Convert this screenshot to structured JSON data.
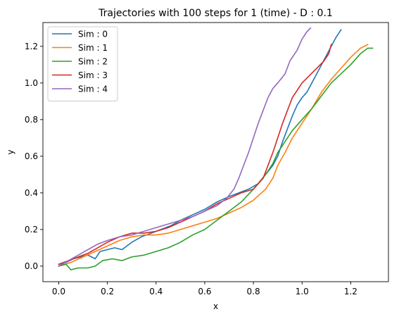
{
  "chart_data": {
    "type": "line",
    "title": "Trajectories with 100 steps for 1 (time) - D : 0.1",
    "xlabel": "x",
    "ylabel": "y",
    "xlim": [
      -0.065,
      1.355
    ],
    "ylim": [
      -0.085,
      1.33
    ],
    "xticks": [
      0.0,
      0.2,
      0.4,
      0.6,
      0.8,
      1.0,
      1.2
    ],
    "yticks": [
      0.0,
      0.2,
      0.4,
      0.6,
      0.8,
      1.0,
      1.2
    ],
    "xtick_labels": [
      "0.0",
      "0.2",
      "0.4",
      "0.6",
      "0.8",
      "1.0",
      "1.2"
    ],
    "ytick_labels": [
      "0.0",
      "0.2",
      "0.4",
      "0.6",
      "0.8",
      "1.0",
      "1.2"
    ],
    "grid": false,
    "legend_position": "top-left",
    "series": [
      {
        "name": "Sim : 0",
        "color": "#1f77b4",
        "points": [
          [
            0.0,
            0.01
          ],
          [
            0.03,
            0.02
          ],
          [
            0.06,
            0.04
          ],
          [
            0.09,
            0.05
          ],
          [
            0.12,
            0.06
          ],
          [
            0.15,
            0.04
          ],
          [
            0.17,
            0.08
          ],
          [
            0.2,
            0.09
          ],
          [
            0.23,
            0.1
          ],
          [
            0.26,
            0.09
          ],
          [
            0.3,
            0.13
          ],
          [
            0.34,
            0.16
          ],
          [
            0.38,
            0.18
          ],
          [
            0.42,
            0.2
          ],
          [
            0.46,
            0.22
          ],
          [
            0.5,
            0.25
          ],
          [
            0.55,
            0.28
          ],
          [
            0.6,
            0.31
          ],
          [
            0.65,
            0.35
          ],
          [
            0.7,
            0.38
          ],
          [
            0.74,
            0.4
          ],
          [
            0.78,
            0.42
          ],
          [
            0.82,
            0.45
          ],
          [
            0.85,
            0.5
          ],
          [
            0.88,
            0.55
          ],
          [
            0.9,
            0.6
          ],
          [
            0.92,
            0.68
          ],
          [
            0.94,
            0.75
          ],
          [
            0.96,
            0.82
          ],
          [
            0.98,
            0.88
          ],
          [
            1.0,
            0.92
          ],
          [
            1.02,
            0.95
          ],
          [
            1.04,
            1.0
          ],
          [
            1.06,
            1.05
          ],
          [
            1.08,
            1.1
          ],
          [
            1.1,
            1.15
          ],
          [
            1.12,
            1.2
          ],
          [
            1.14,
            1.25
          ],
          [
            1.16,
            1.29
          ]
        ]
      },
      {
        "name": "Sim : 1",
        "color": "#ff7f0e",
        "points": [
          [
            0.0,
            0.0
          ],
          [
            0.05,
            0.02
          ],
          [
            0.1,
            0.05
          ],
          [
            0.15,
            0.08
          ],
          [
            0.2,
            0.11
          ],
          [
            0.25,
            0.14
          ],
          [
            0.3,
            0.16
          ],
          [
            0.35,
            0.17
          ],
          [
            0.4,
            0.17
          ],
          [
            0.45,
            0.18
          ],
          [
            0.5,
            0.2
          ],
          [
            0.55,
            0.22
          ],
          [
            0.6,
            0.24
          ],
          [
            0.65,
            0.26
          ],
          [
            0.7,
            0.29
          ],
          [
            0.75,
            0.32
          ],
          [
            0.8,
            0.36
          ],
          [
            0.85,
            0.42
          ],
          [
            0.88,
            0.48
          ],
          [
            0.9,
            0.55
          ],
          [
            0.93,
            0.62
          ],
          [
            0.96,
            0.7
          ],
          [
            1.0,
            0.78
          ],
          [
            1.04,
            0.86
          ],
          [
            1.08,
            0.95
          ],
          [
            1.12,
            1.02
          ],
          [
            1.16,
            1.08
          ],
          [
            1.2,
            1.14
          ],
          [
            1.24,
            1.19
          ],
          [
            1.27,
            1.21
          ]
        ]
      },
      {
        "name": "Sim : 2",
        "color": "#2ca02c",
        "points": [
          [
            0.0,
            0.0
          ],
          [
            0.03,
            0.01
          ],
          [
            0.05,
            -0.02
          ],
          [
            0.08,
            -0.01
          ],
          [
            0.12,
            -0.01
          ],
          [
            0.15,
            0.0
          ],
          [
            0.18,
            0.03
          ],
          [
            0.22,
            0.04
          ],
          [
            0.26,
            0.03
          ],
          [
            0.3,
            0.05
          ],
          [
            0.35,
            0.06
          ],
          [
            0.4,
            0.08
          ],
          [
            0.45,
            0.1
          ],
          [
            0.5,
            0.13
          ],
          [
            0.55,
            0.17
          ],
          [
            0.6,
            0.2
          ],
          [
            0.65,
            0.25
          ],
          [
            0.7,
            0.3
          ],
          [
            0.75,
            0.35
          ],
          [
            0.8,
            0.42
          ],
          [
            0.85,
            0.5
          ],
          [
            0.88,
            0.56
          ],
          [
            0.9,
            0.62
          ],
          [
            0.93,
            0.68
          ],
          [
            0.96,
            0.74
          ],
          [
            1.0,
            0.8
          ],
          [
            1.04,
            0.86
          ],
          [
            1.08,
            0.93
          ],
          [
            1.12,
            1.0
          ],
          [
            1.16,
            1.05
          ],
          [
            1.2,
            1.1
          ],
          [
            1.24,
            1.16
          ],
          [
            1.27,
            1.19
          ],
          [
            1.29,
            1.19
          ]
        ]
      },
      {
        "name": "Sim : 3",
        "color": "#d62728",
        "points": [
          [
            0.0,
            0.01
          ],
          [
            0.04,
            0.03
          ],
          [
            0.08,
            0.05
          ],
          [
            0.12,
            0.07
          ],
          [
            0.16,
            0.1
          ],
          [
            0.2,
            0.13
          ],
          [
            0.25,
            0.16
          ],
          [
            0.3,
            0.18
          ],
          [
            0.35,
            0.18
          ],
          [
            0.4,
            0.19
          ],
          [
            0.45,
            0.21
          ],
          [
            0.5,
            0.24
          ],
          [
            0.55,
            0.27
          ],
          [
            0.6,
            0.3
          ],
          [
            0.65,
            0.34
          ],
          [
            0.7,
            0.37
          ],
          [
            0.75,
            0.4
          ],
          [
            0.8,
            0.42
          ],
          [
            0.84,
            0.48
          ],
          [
            0.86,
            0.55
          ],
          [
            0.88,
            0.62
          ],
          [
            0.9,
            0.7
          ],
          [
            0.92,
            0.78
          ],
          [
            0.94,
            0.85
          ],
          [
            0.96,
            0.92
          ],
          [
            0.98,
            0.96
          ],
          [
            1.0,
            1.0
          ],
          [
            1.03,
            1.04
          ],
          [
            1.06,
            1.08
          ],
          [
            1.09,
            1.12
          ],
          [
            1.11,
            1.16
          ],
          [
            1.12,
            1.21
          ]
        ]
      },
      {
        "name": "Sim : 4",
        "color": "#9467bd",
        "points": [
          [
            0.0,
            0.0
          ],
          [
            0.04,
            0.03
          ],
          [
            0.08,
            0.06
          ],
          [
            0.12,
            0.09
          ],
          [
            0.16,
            0.12
          ],
          [
            0.2,
            0.14
          ],
          [
            0.25,
            0.16
          ],
          [
            0.3,
            0.17
          ],
          [
            0.35,
            0.19
          ],
          [
            0.4,
            0.21
          ],
          [
            0.45,
            0.23
          ],
          [
            0.5,
            0.25
          ],
          [
            0.55,
            0.27
          ],
          [
            0.6,
            0.3
          ],
          [
            0.65,
            0.33
          ],
          [
            0.69,
            0.37
          ],
          [
            0.72,
            0.42
          ],
          [
            0.74,
            0.48
          ],
          [
            0.76,
            0.55
          ],
          [
            0.78,
            0.62
          ],
          [
            0.8,
            0.7
          ],
          [
            0.82,
            0.78
          ],
          [
            0.84,
            0.85
          ],
          [
            0.86,
            0.92
          ],
          [
            0.88,
            0.97
          ],
          [
            0.9,
            1.0
          ],
          [
            0.93,
            1.05
          ],
          [
            0.95,
            1.12
          ],
          [
            0.98,
            1.18
          ],
          [
            1.0,
            1.24
          ],
          [
            1.02,
            1.28
          ],
          [
            1.035,
            1.3
          ]
        ]
      }
    ]
  }
}
